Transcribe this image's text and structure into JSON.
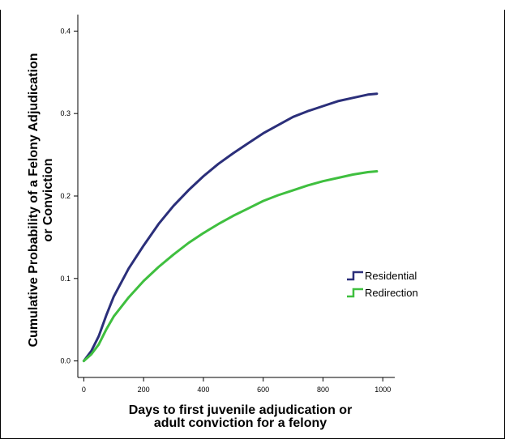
{
  "chart_data": {
    "type": "line",
    "xlabel": [
      "Days to first juvenile adjudication or",
      "adult conviction for a felony"
    ],
    "ylabel": [
      "Cumulative Probability of a Felony Adjudication",
      "or Conviction"
    ],
    "xlim": [
      -20,
      1040
    ],
    "ylim": [
      -0.02,
      0.42
    ],
    "xticks": [
      0,
      200,
      400,
      600,
      800,
      1000
    ],
    "yticks": [
      0.0,
      0.1,
      0.2,
      0.3,
      0.4
    ],
    "ytick_labels": [
      "0.0",
      "0.1",
      "0.2",
      "0.3",
      "0.4"
    ],
    "legend_position": "center-right",
    "series": [
      {
        "name": "Residential",
        "color": "#2b2f7a",
        "x": [
          0,
          25,
          50,
          75,
          100,
          150,
          200,
          250,
          300,
          350,
          400,
          450,
          500,
          550,
          600,
          650,
          700,
          750,
          800,
          850,
          900,
          950,
          980
        ],
        "y": [
          0.0,
          0.012,
          0.03,
          0.055,
          0.078,
          0.112,
          0.14,
          0.166,
          0.188,
          0.207,
          0.224,
          0.239,
          0.252,
          0.264,
          0.276,
          0.286,
          0.296,
          0.303,
          0.309,
          0.315,
          0.319,
          0.323,
          0.324
        ]
      },
      {
        "name": "Redirection",
        "color": "#3fbf3f",
        "x": [
          0,
          25,
          50,
          75,
          100,
          150,
          200,
          250,
          300,
          350,
          400,
          450,
          500,
          550,
          600,
          650,
          700,
          750,
          800,
          850,
          900,
          950,
          980
        ],
        "y": [
          0.0,
          0.008,
          0.02,
          0.038,
          0.054,
          0.077,
          0.097,
          0.114,
          0.129,
          0.143,
          0.155,
          0.166,
          0.176,
          0.185,
          0.194,
          0.201,
          0.207,
          0.213,
          0.218,
          0.222,
          0.226,
          0.229,
          0.23
        ]
      }
    ]
  }
}
